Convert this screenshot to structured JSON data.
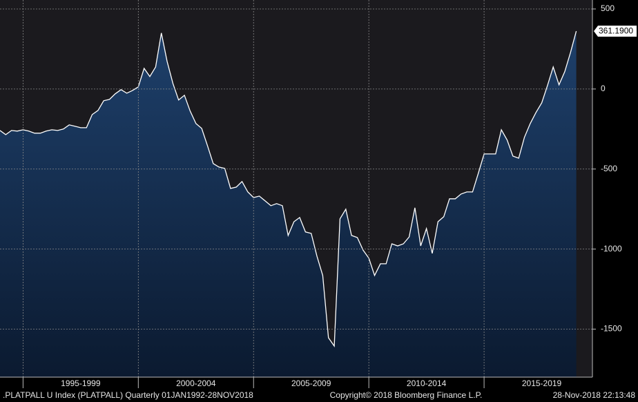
{
  "chart_data": {
    "type": "area",
    "x_start": 1994,
    "x_step": 0.25,
    "series": [
      {
        "name": ".PLATPALL U Index (PLATPALL)",
        "color": "#ffffff",
        "fill": "#17365c",
        "values": [
          -259,
          -285,
          -259,
          -263,
          -255,
          -263,
          -276,
          -276,
          -263,
          -255,
          -259,
          -250,
          -224,
          -233,
          -242,
          -242,
          -160,
          -134,
          -73,
          -65,
          -30,
          -4,
          -26,
          -9,
          13,
          129,
          78,
          138,
          350,
          173,
          35,
          -69,
          -39,
          -138,
          -216,
          -246,
          -354,
          -466,
          -488,
          -496,
          -621,
          -613,
          -578,
          -643,
          -678,
          -669,
          -699,
          -729,
          -716,
          -729,
          -915,
          -829,
          -803,
          -893,
          -902,
          -1044,
          -1165,
          -1554,
          -1606,
          -811,
          -751,
          -915,
          -928,
          -1006,
          -1057,
          -1165,
          -1092,
          -1092,
          -967,
          -980,
          -967,
          -924,
          -742,
          -980,
          -872,
          -1027,
          -829,
          -798,
          -686,
          -686,
          -656,
          -643,
          -643,
          -527,
          -406,
          -406,
          -406,
          -255,
          -319,
          -419,
          -432,
          -302,
          -216,
          -147,
          -86,
          22,
          138,
          26,
          108,
          229,
          361.19
        ],
        "last_value_label": "361.1900"
      }
    ],
    "xlim": [
      1994,
      2019.7
    ],
    "xgrid": [
      1995,
      2000,
      2005,
      2010,
      2015
    ],
    "xticks": [
      {
        "value": 1997.5,
        "label": "1995-1999"
      },
      {
        "value": 2002.5,
        "label": "2000-2004"
      },
      {
        "value": 2007.5,
        "label": "2005-2009"
      },
      {
        "value": 2012.5,
        "label": "2010-2014"
      },
      {
        "value": 2017.5,
        "label": "2015-2019"
      }
    ],
    "ylim": [
      -1800,
      556
    ],
    "yticks": [
      500,
      0,
      -500,
      -1000,
      -1500
    ],
    "grid": true,
    "footer": {
      "security": ".PLATPALL U Index (PLATPALL)  Quarterly 01JAN1992-28NOV2018",
      "copyright": "Copyright© 2018 Bloomberg Finance L.P.",
      "timestamp": "28-Nov-2018 22:13:48"
    }
  }
}
